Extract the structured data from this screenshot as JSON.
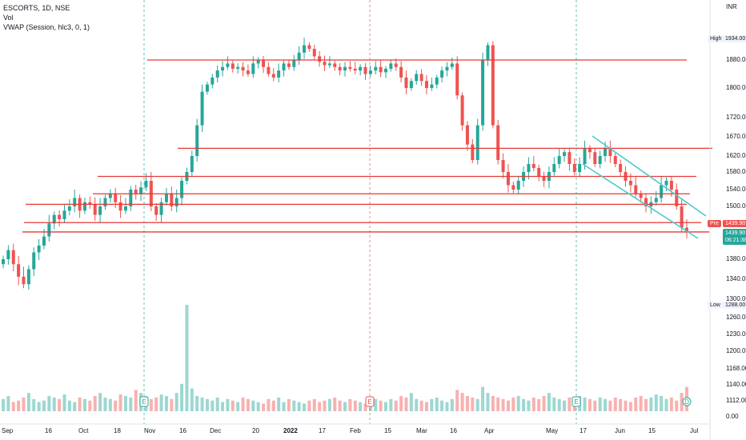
{
  "legend": {
    "line1": "ESCORTS, 1D, NSE",
    "line2": "Vol",
    "line3": "VWAP (Session, hlc3, 0, 1)"
  },
  "axis": {
    "currency": "INR",
    "y_ticks": [
      "1934.00",
      "1880.00",
      "1800.00",
      "1720.00",
      "1670.00",
      "1620.00",
      "1580.00",
      "1540.00",
      "1500.00",
      "1439.90",
      "1380.00",
      "1340.00",
      "1300.00",
      "1288.00",
      "1260.00",
      "1230.00",
      "1200.00",
      "1168.00",
      "1140.00",
      "1112.00",
      "0.00"
    ],
    "x_ticks": [
      "Sep",
      "16",
      "Oct",
      "18",
      "Nov",
      "16",
      "Dec",
      "20",
      "2022",
      "17",
      "Feb",
      "15",
      "Mar",
      "16",
      "Apr",
      "May",
      "17",
      "Jun",
      "15",
      "Jul"
    ],
    "high_label": "High",
    "high_value": "1934.00",
    "low_label": "Low",
    "low_value": "1288.00",
    "pre_label": "Pre",
    "pre_value": "1439.90",
    "last_price": "1439.90",
    "countdown": "06:21:38"
  },
  "markers": [
    "E",
    "E",
    "E",
    "D"
  ],
  "colors": {
    "up": "#26a69a",
    "down": "#ef5350",
    "level": "#e53935",
    "channel": "#4dc9cf",
    "grid": "#f0f3fa"
  },
  "chart_data": {
    "type": "candlestick",
    "symbol": "ESCORTS",
    "interval": "1D",
    "exchange": "NSE",
    "ylim": [
      1288,
      1934
    ],
    "close_series": [
      1380,
      1400,
      1370,
      1345,
      1330,
      1360,
      1395,
      1410,
      1430,
      1460,
      1480,
      1470,
      1490,
      1500,
      1520,
      1490,
      1510,
      1505,
      1480,
      1500,
      1520,
      1530,
      1510,
      1490,
      1500,
      1540,
      1530,
      1545,
      1560,
      1500,
      1480,
      1510,
      1530,
      1500,
      1520,
      1560,
      1580,
      1620,
      1700,
      1790,
      1810,
      1830,
      1850,
      1860,
      1870,
      1855,
      1860,
      1850,
      1840,
      1870,
      1880,
      1860,
      1840,
      1830,
      1850,
      1870,
      1860,
      1880,
      1900,
      1920,
      1910,
      1890,
      1875,
      1865,
      1870,
      1860,
      1850,
      1860,
      1855,
      1850,
      1860,
      1840,
      1850,
      1860,
      1845,
      1855,
      1870,
      1860,
      1830,
      1800,
      1820,
      1840,
      1820,
      1800,
      1810,
      1830,
      1850,
      1860,
      1870,
      1780,
      1700,
      1650,
      1610,
      1700,
      1880,
      1920,
      1700,
      1610,
      1580,
      1550,
      1540,
      1560,
      1580,
      1600,
      1590,
      1570,
      1560,
      1580,
      1600,
      1620,
      1630,
      1600,
      1580,
      1600,
      1640,
      1630,
      1600,
      1620,
      1640,
      1620,
      1600,
      1580,
      1560,
      1550,
      1530,
      1520,
      1500,
      1510,
      1520,
      1550,
      1560,
      1540,
      1500,
      1450,
      1439.9
    ],
    "volume_series": [
      8,
      10,
      6,
      7,
      9,
      12,
      8,
      6,
      7,
      10,
      9,
      8,
      11,
      7,
      6,
      9,
      8,
      7,
      10,
      12,
      9,
      8,
      7,
      11,
      10,
      9,
      14,
      12,
      10,
      8,
      9,
      11,
      10,
      8,
      12,
      18,
      70,
      15,
      10,
      9,
      8,
      7,
      9,
      6,
      8,
      7,
      6,
      9,
      8,
      7,
      6,
      5,
      8,
      7,
      9,
      6,
      8,
      7,
      6,
      5,
      7,
      8,
      6,
      7,
      8,
      9,
      7,
      6,
      8,
      7,
      6,
      5,
      9,
      8,
      7,
      6,
      8,
      7,
      10,
      9,
      12,
      8,
      7,
      6,
      8,
      9,
      7,
      6,
      8,
      14,
      12,
      10,
      9,
      8,
      16,
      12,
      10,
      9,
      8,
      7,
      9,
      10,
      8,
      7,
      9,
      8,
      10,
      12,
      9,
      8,
      7,
      9,
      8,
      10,
      9,
      8,
      7,
      9,
      8,
      7,
      9,
      8,
      7,
      6,
      9,
      10,
      8,
      9,
      11,
      10,
      8,
      9,
      7,
      12,
      16
    ],
    "levels": [
      1880,
      1640,
      1570,
      1530,
      1505,
      1462,
      1440
    ],
    "annotations": [
      "E",
      "E",
      "E",
      "D"
    ],
    "grid": false,
    "legend_position": "top-left"
  }
}
